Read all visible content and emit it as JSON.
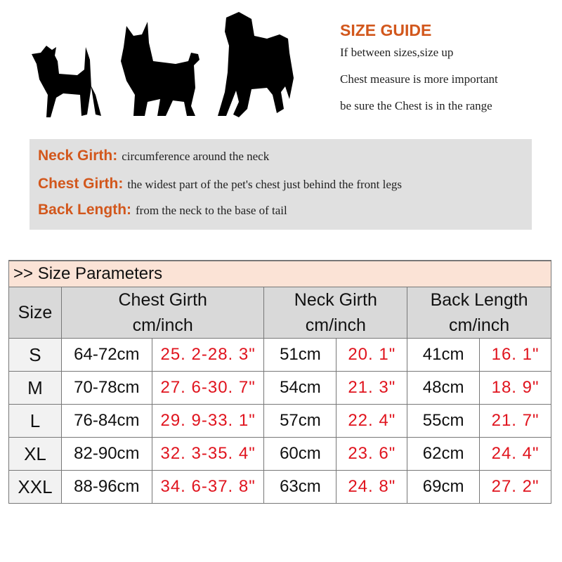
{
  "guide": {
    "title": "SIZE GUIDE",
    "lines": [
      "If between sizes,size up",
      "Chest measure is more important",
      "be sure the Chest is in the range"
    ]
  },
  "definitions": [
    {
      "term": "Neck Girth:",
      "desc": "circumference around the neck"
    },
    {
      "term": "Chest Girth:",
      "desc": "the widest part of the pet's chest just behind the front legs"
    },
    {
      "term": "Back Length:",
      "desc": "from the neck to the base of tail"
    }
  ],
  "table": {
    "title": ">> Size Parameters",
    "headers": {
      "size": "Size",
      "chest": "Chest Girth",
      "neck": "Neck Girth",
      "back": "Back Length",
      "unit": "cm/inch"
    },
    "rows": [
      {
        "size": "S",
        "chest_cm": "64-72cm",
        "chest_in": "25. 2-28. 3\"",
        "neck_cm": "51cm",
        "neck_in": "20. 1\"",
        "back_cm": "41cm",
        "back_in": "16. 1\""
      },
      {
        "size": "M",
        "chest_cm": "70-78cm",
        "chest_in": "27. 6-30. 7\"",
        "neck_cm": "54cm",
        "neck_in": "21. 3\"",
        "back_cm": "48cm",
        "back_in": "18. 9\""
      },
      {
        "size": "L",
        "chest_cm": "76-84cm",
        "chest_in": "29. 9-33. 1\"",
        "neck_cm": "57cm",
        "neck_in": "22. 4\"",
        "back_cm": "55cm",
        "back_in": "21. 7\""
      },
      {
        "size": "XL",
        "chest_cm": "82-90cm",
        "chest_in": "32. 3-35. 4\"",
        "neck_cm": "60cm",
        "neck_in": "23. 6\"",
        "back_cm": "62cm",
        "back_in": "24. 4\""
      },
      {
        "size": "XXL",
        "chest_cm": "88-96cm",
        "chest_in": "34. 6-37. 8\"",
        "neck_cm": "63cm",
        "neck_in": "24. 8\"",
        "back_cm": "69cm",
        "back_in": "27. 2\""
      }
    ]
  },
  "colors": {
    "accent": "#d2571c",
    "inch": "#e0141e",
    "title_bg": "#fbe3d6",
    "header_bg": "#d9d9d9"
  }
}
